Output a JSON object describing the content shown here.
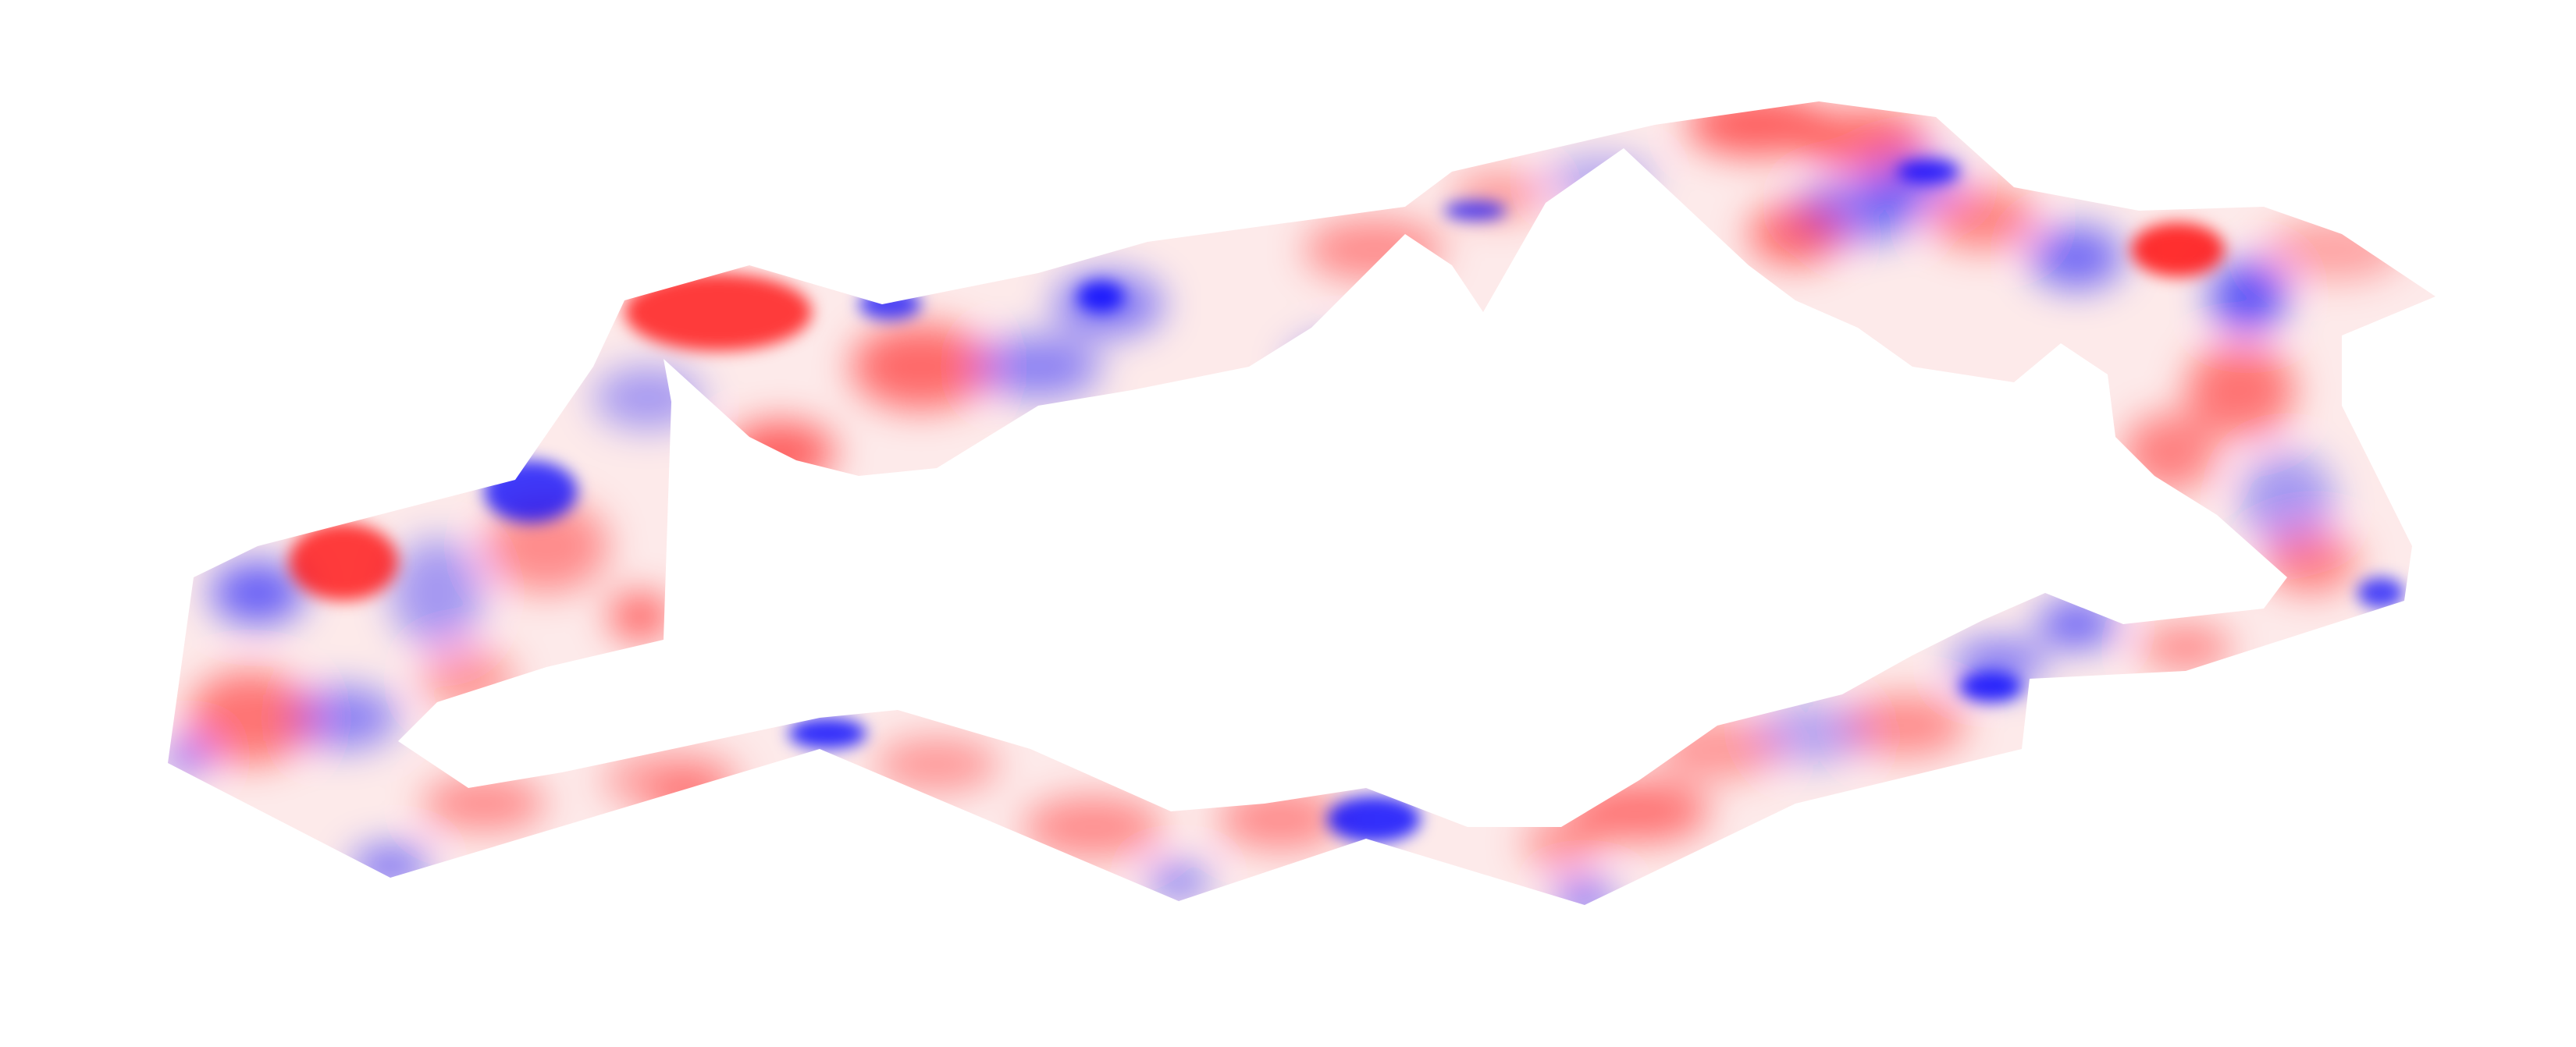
{
  "figure": {
    "subject": "hollow-ring-surface",
    "colormap": {
      "negative": "#0000ff",
      "neutral": "#ffffff",
      "positive": "#ff0000"
    }
  }
}
